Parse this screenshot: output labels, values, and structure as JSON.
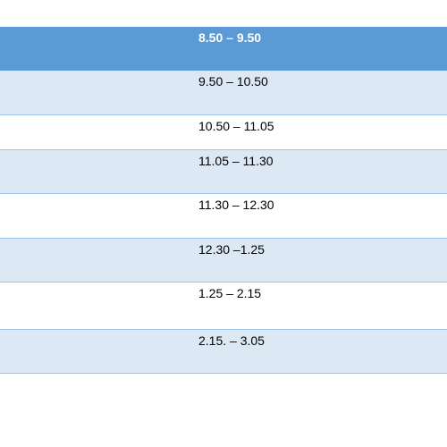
{
  "table": {
    "header": "8.50 – 9.50",
    "rows": [
      "9.50 – 10.50",
      "10.50 – 11.05",
      "11.05 – 11.30",
      "11.30 – 12.30",
      "12.30 –1.25",
      "1.25 – 2.15",
      "2.15. – 3.05"
    ]
  }
}
